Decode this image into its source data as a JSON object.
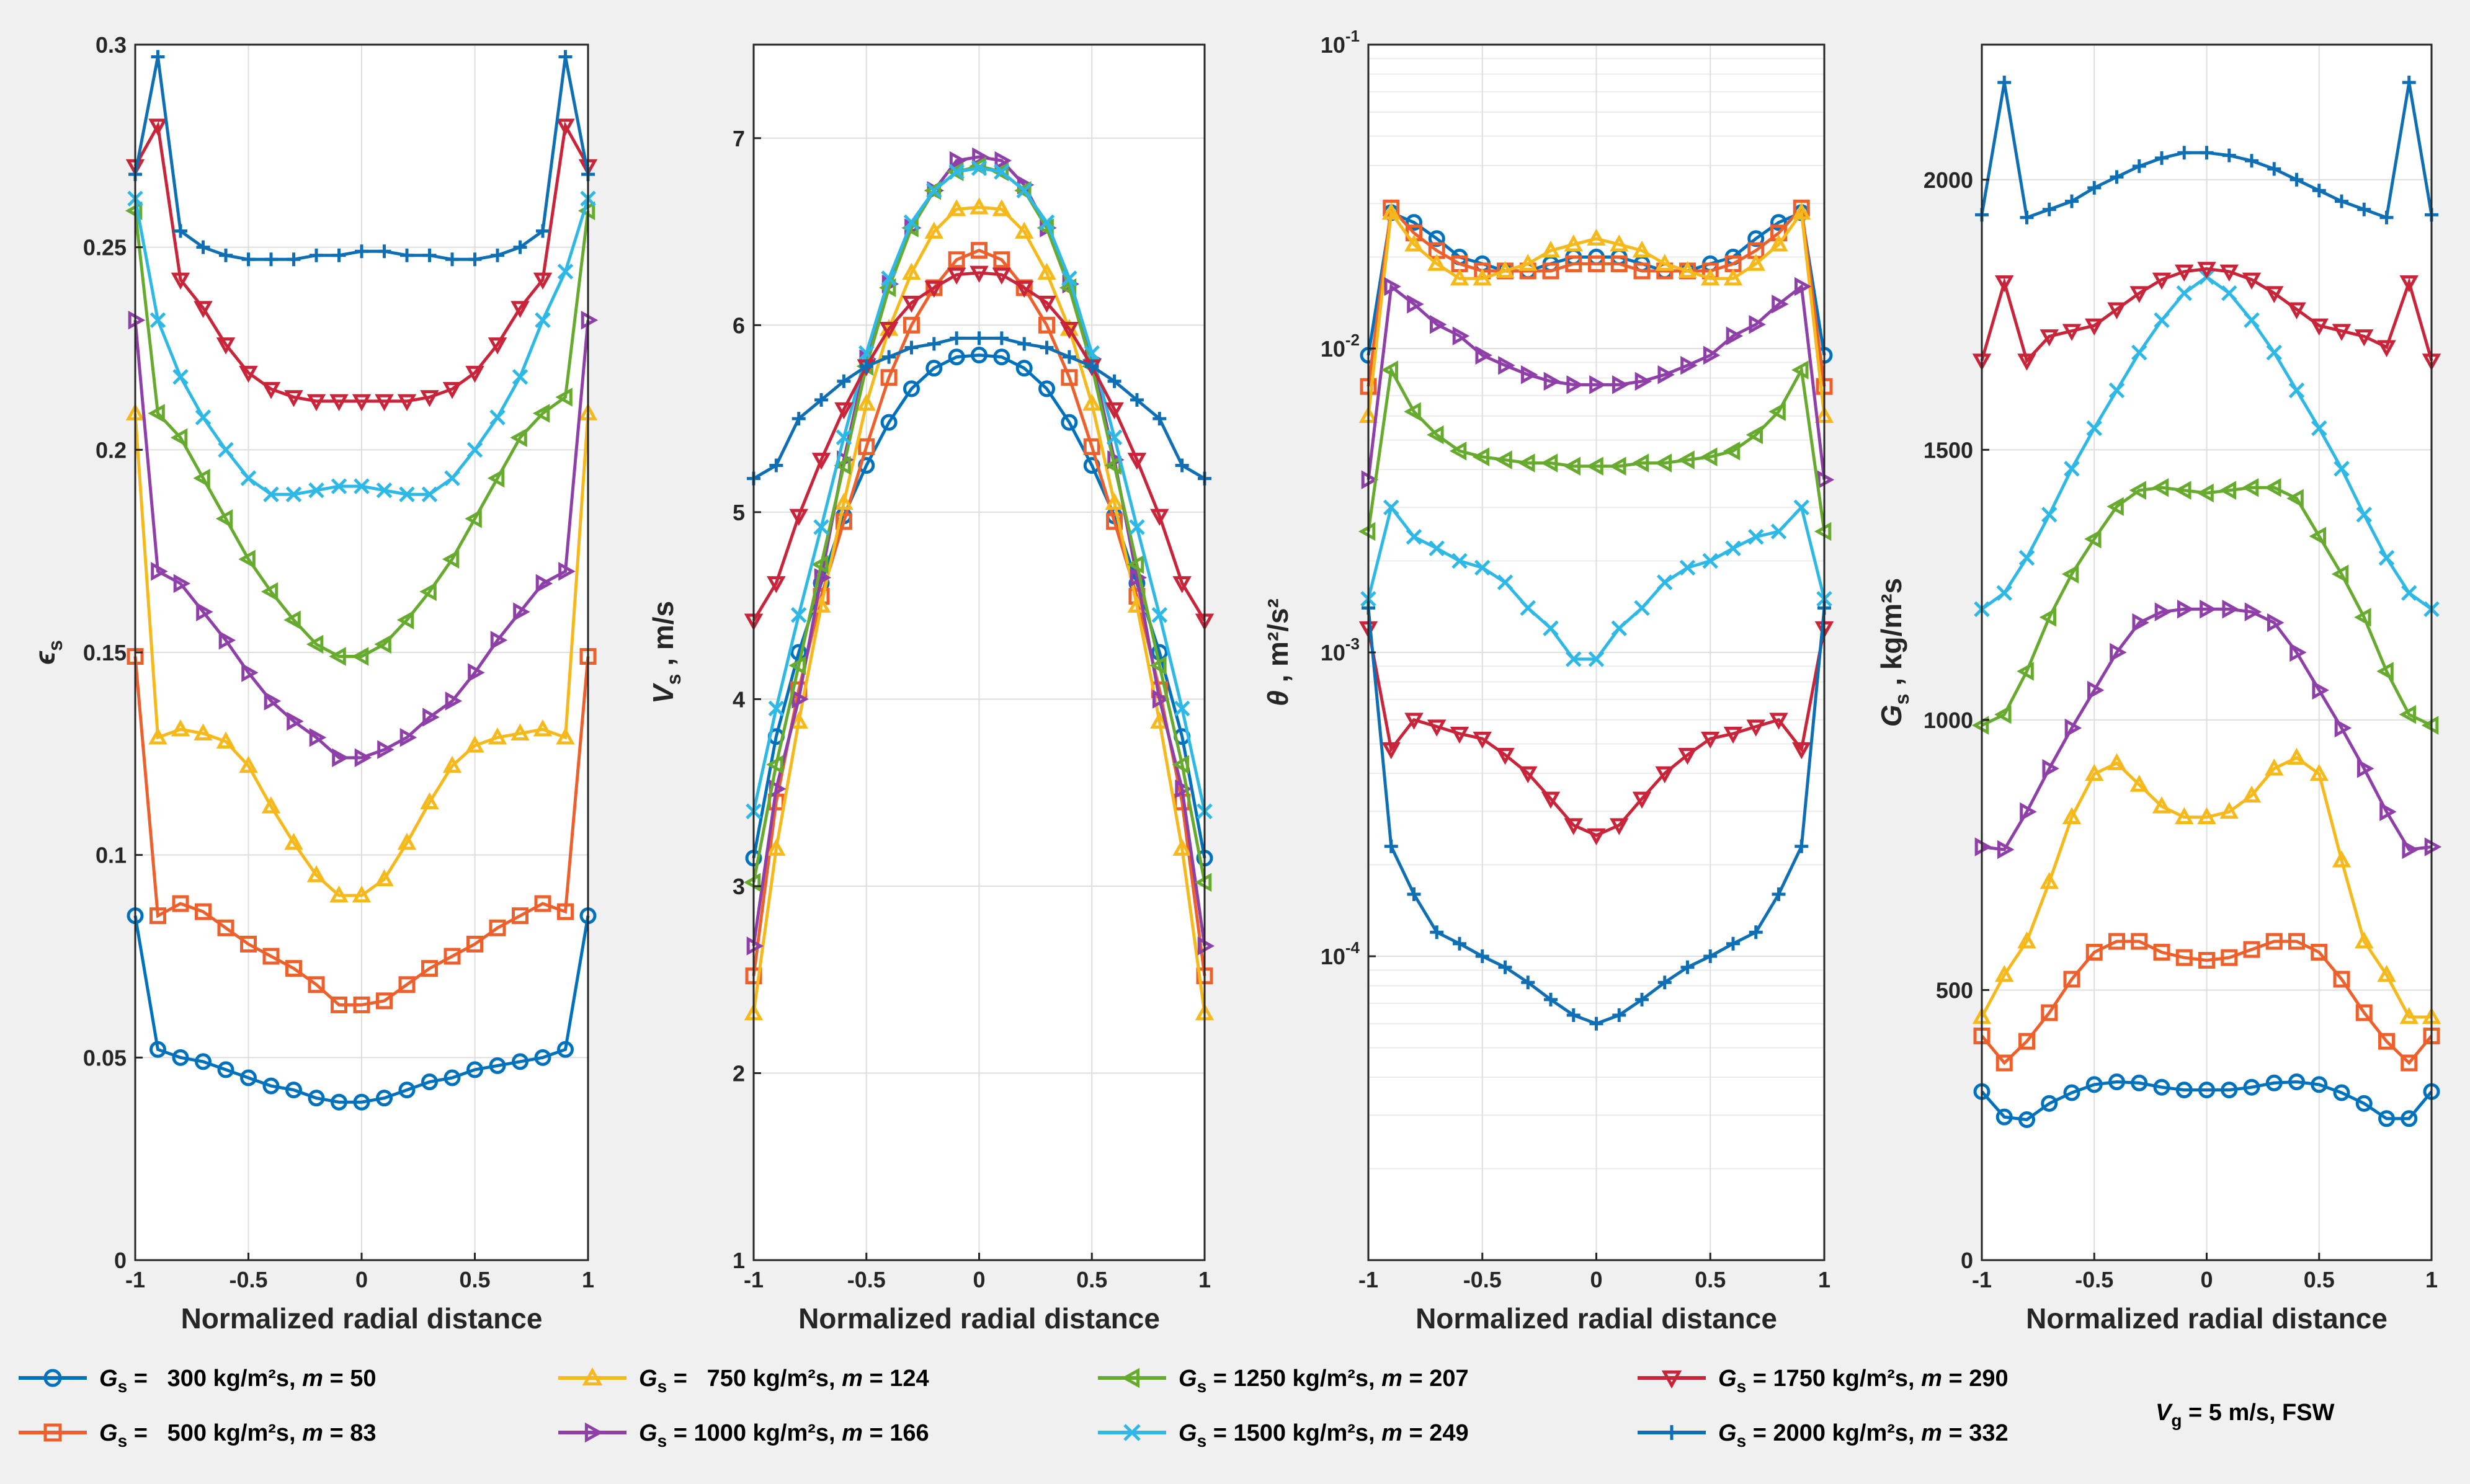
{
  "figure": {
    "note": "V_g = 5 m/s, FSW",
    "note_var": "V",
    "note_sub": "g",
    "note_rest": " = 5 m/s, FSW"
  },
  "legend": [
    {
      "text": "= 300 kg/m²s, m = 50",
      "gs": "300",
      "m": "50",
      "color": "#0072BD",
      "marker": "circle"
    },
    {
      "text": "= 500 kg/m²s, m = 83",
      "gs": "500",
      "m": "83",
      "color": "#ED5F2B",
      "marker": "square"
    },
    {
      "text": "= 750 kg/m²s, m = 124",
      "gs": "750",
      "m": "124",
      "color": "#F6B91B",
      "marker": "triangle-up"
    },
    {
      "text": "= 1000 kg/m²s, m = 166",
      "gs": "1000",
      "m": "166",
      "color": "#8E3FA8",
      "marker": "triangle-right"
    },
    {
      "text": "= 1250 kg/m²s, m = 207",
      "gs": "1250",
      "m": "207",
      "color": "#66AA2E",
      "marker": "triangle-left"
    },
    {
      "text": "= 1500 kg/m²s, m = 249",
      "gs": "1500",
      "m": "249",
      "color": "#2EB8E6",
      "marker": "x"
    },
    {
      "text": "= 1750 kg/m²s, m = 290",
      "gs": "1750",
      "m": "290",
      "color": "#C8243A",
      "marker": "triangle-down"
    },
    {
      "text": "= 2000 kg/m²s, m = 332",
      "gs": "2000",
      "m": "332",
      "color": "#0E6FB5",
      "marker": "plus"
    }
  ],
  "chart_data": [
    {
      "type": "line",
      "xlabel": "Normalized radial distance",
      "ylabel": "εs",
      "ylabel_main": "ϵ",
      "ylabel_sub": "s",
      "ylabel_rest": "",
      "xlim": [
        -1,
        1
      ],
      "ylim": [
        0,
        0.3
      ],
      "yscale": "linear",
      "grid": true,
      "xticks": [
        -1,
        -0.5,
        0,
        0.5,
        1
      ],
      "xtick_labels": [
        "-1",
        "-0.5",
        "0",
        "0.5",
        "1"
      ],
      "yticks": [
        0,
        0.05,
        0.1,
        0.15,
        0.2,
        0.25,
        0.3
      ],
      "ytick_labels": [
        "0",
        "0.05",
        "0.1",
        "0.15",
        "0.2",
        "0.25",
        "0.3"
      ],
      "x": [
        -1,
        -0.9,
        -0.8,
        -0.7,
        -0.6,
        -0.5,
        -0.4,
        -0.3,
        -0.2,
        -0.1,
        0,
        0.1,
        0.2,
        0.3,
        0.4,
        0.5,
        0.6,
        0.7,
        0.8,
        0.9,
        1
      ],
      "series": [
        {
          "values": [
            0.085,
            0.052,
            0.05,
            0.049,
            0.047,
            0.045,
            0.043,
            0.042,
            0.04,
            0.039,
            0.039,
            0.04,
            0.042,
            0.044,
            0.045,
            0.047,
            0.048,
            0.049,
            0.05,
            0.052,
            0.085
          ]
        },
        {
          "values": [
            0.149,
            0.085,
            0.088,
            0.086,
            0.082,
            0.078,
            0.075,
            0.072,
            0.068,
            0.063,
            0.063,
            0.064,
            0.068,
            0.072,
            0.075,
            0.078,
            0.082,
            0.085,
            0.088,
            0.086,
            0.149
          ]
        },
        {
          "values": [
            0.209,
            0.129,
            0.131,
            0.13,
            0.128,
            0.122,
            0.112,
            0.103,
            0.095,
            0.09,
            0.09,
            0.094,
            0.103,
            0.113,
            0.122,
            0.127,
            0.129,
            0.13,
            0.131,
            0.129,
            0.209
          ]
        },
        {
          "values": [
            0.232,
            0.17,
            0.167,
            0.16,
            0.153,
            0.145,
            0.138,
            0.133,
            0.129,
            0.124,
            0.124,
            0.126,
            0.129,
            0.134,
            0.138,
            0.145,
            0.153,
            0.16,
            0.167,
            0.17,
            0.232
          ]
        },
        {
          "values": [
            0.259,
            0.209,
            0.203,
            0.193,
            0.183,
            0.173,
            0.165,
            0.158,
            0.152,
            0.149,
            0.149,
            0.152,
            0.158,
            0.165,
            0.173,
            0.183,
            0.193,
            0.203,
            0.209,
            0.213,
            0.259
          ]
        },
        {
          "values": [
            0.262,
            0.232,
            0.218,
            0.208,
            0.2,
            0.193,
            0.189,
            0.189,
            0.19,
            0.191,
            0.191,
            0.19,
            0.189,
            0.189,
            0.193,
            0.2,
            0.208,
            0.218,
            0.232,
            0.244,
            0.262
          ]
        },
        {
          "values": [
            0.27,
            0.28,
            0.242,
            0.235,
            0.226,
            0.219,
            0.215,
            0.213,
            0.212,
            0.212,
            0.212,
            0.212,
            0.212,
            0.213,
            0.215,
            0.219,
            0.226,
            0.235,
            0.242,
            0.28,
            0.27
          ]
        },
        {
          "values": [
            0.268,
            0.297,
            0.254,
            0.25,
            0.248,
            0.247,
            0.247,
            0.247,
            0.248,
            0.248,
            0.249,
            0.249,
            0.248,
            0.248,
            0.247,
            0.247,
            0.248,
            0.25,
            0.254,
            0.297,
            0.268
          ]
        }
      ]
    },
    {
      "type": "line",
      "xlabel": "Normalized radial distance",
      "ylabel": "Vs , m/s",
      "ylabel_main": "V",
      "ylabel_sub": "s",
      "ylabel_rest": " , m/s",
      "xlim": [
        -1,
        1
      ],
      "ylim": [
        1,
        7.5
      ],
      "yscale": "linear",
      "grid": true,
      "xticks": [
        -1,
        -0.5,
        0,
        0.5,
        1
      ],
      "xtick_labels": [
        "-1",
        "-0.5",
        "0",
        "0.5",
        "1"
      ],
      "yticks": [
        1,
        2,
        3,
        4,
        5,
        6,
        7
      ],
      "ytick_labels": [
        "1",
        "2",
        "3",
        "4",
        "5",
        "6",
        "7"
      ],
      "x": [
        -1,
        -0.9,
        -0.8,
        -0.7,
        -0.6,
        -0.5,
        -0.4,
        -0.3,
        -0.2,
        -0.1,
        0,
        0.1,
        0.2,
        0.3,
        0.4,
        0.5,
        0.6,
        0.7,
        0.8,
        0.9,
        1
      ],
      "series": [
        {
          "values": [
            3.15,
            3.8,
            4.25,
            4.62,
            4.98,
            5.25,
            5.48,
            5.66,
            5.77,
            5.83,
            5.84,
            5.83,
            5.77,
            5.66,
            5.48,
            5.25,
            4.98,
            4.62,
            4.25,
            3.8,
            3.15
          ]
        },
        {
          "values": [
            2.52,
            3.45,
            4.05,
            4.55,
            4.95,
            5.35,
            5.72,
            6.0,
            6.2,
            6.35,
            6.4,
            6.35,
            6.2,
            6.0,
            5.72,
            5.35,
            4.95,
            4.55,
            4.05,
            3.45,
            2.52
          ]
        },
        {
          "values": [
            2.32,
            3.2,
            3.88,
            4.5,
            5.05,
            5.58,
            5.98,
            6.28,
            6.5,
            6.62,
            6.63,
            6.62,
            6.5,
            6.28,
            5.98,
            5.58,
            5.05,
            4.5,
            3.88,
            3.2,
            2.32
          ]
        },
        {
          "values": [
            2.68,
            3.52,
            4.0,
            4.65,
            5.28,
            5.82,
            6.22,
            6.52,
            6.72,
            6.88,
            6.9,
            6.88,
            6.75,
            6.52,
            6.22,
            5.82,
            5.28,
            4.65,
            4.0,
            3.52,
            2.68
          ]
        },
        {
          "values": [
            3.02,
            3.65,
            4.18,
            4.72,
            5.25,
            5.78,
            6.2,
            6.52,
            6.72,
            6.82,
            6.85,
            6.82,
            6.72,
            6.52,
            6.2,
            5.78,
            5.25,
            4.72,
            4.18,
            3.65,
            3.02
          ]
        },
        {
          "values": [
            3.4,
            3.95,
            4.45,
            4.92,
            5.4,
            5.85,
            6.25,
            6.55,
            6.72,
            6.82,
            6.84,
            6.82,
            6.72,
            6.55,
            6.25,
            5.85,
            5.4,
            4.92,
            4.45,
            3.95,
            3.4
          ]
        },
        {
          "values": [
            4.42,
            4.62,
            4.98,
            5.28,
            5.55,
            5.78,
            5.98,
            6.12,
            6.2,
            6.27,
            6.28,
            6.27,
            6.2,
            6.12,
            5.98,
            5.78,
            5.55,
            5.28,
            4.98,
            4.62,
            4.42
          ]
        },
        {
          "values": [
            5.18,
            5.25,
            5.5,
            5.6,
            5.7,
            5.78,
            5.83,
            5.88,
            5.9,
            5.93,
            5.93,
            5.93,
            5.9,
            5.88,
            5.83,
            5.78,
            5.7,
            5.6,
            5.5,
            5.25,
            5.18
          ]
        }
      ]
    },
    {
      "type": "line",
      "xlabel": "Normalized radial distance",
      "ylabel": "θ , m²/s²",
      "ylabel_main": "θ",
      "ylabel_sub": "",
      "ylabel_rest": " , m²/s²",
      "xlim": [
        -1,
        1
      ],
      "ylim": [
        1e-05,
        0.1
      ],
      "yscale": "log",
      "grid": true,
      "xticks": [
        -1,
        -0.5,
        0,
        0.5,
        1
      ],
      "xtick_labels": [
        "-1",
        "-0.5",
        "0",
        "0.5",
        "1"
      ],
      "yticks": [
        0.0001,
        0.001,
        0.01,
        0.1
      ],
      "ytick_labels": [
        "10-4",
        "10-3",
        "10-2",
        "10-1"
      ],
      "ytick_base": "10",
      "ytick_exp": [
        "-4",
        "-3",
        "-2",
        "-1"
      ],
      "x": [
        -1,
        -0.9,
        -0.8,
        -0.7,
        -0.6,
        -0.5,
        -0.4,
        -0.3,
        -0.2,
        -0.1,
        0,
        0.1,
        0.2,
        0.3,
        0.4,
        0.5,
        0.6,
        0.7,
        0.8,
        0.9,
        1
      ],
      "series": [
        {
          "values": [
            0.0095,
            0.028,
            0.026,
            0.023,
            0.02,
            0.019,
            0.018,
            0.018,
            0.019,
            0.02,
            0.02,
            0.02,
            0.019,
            0.018,
            0.018,
            0.019,
            0.02,
            0.023,
            0.026,
            0.028,
            0.0095
          ]
        },
        {
          "values": [
            0.0075,
            0.029,
            0.024,
            0.021,
            0.019,
            0.018,
            0.018,
            0.018,
            0.018,
            0.019,
            0.019,
            0.019,
            0.018,
            0.018,
            0.018,
            0.018,
            0.019,
            0.021,
            0.024,
            0.029,
            0.0075
          ]
        },
        {
          "values": [
            0.006,
            0.028,
            0.022,
            0.019,
            0.017,
            0.017,
            0.018,
            0.019,
            0.021,
            0.022,
            0.023,
            0.022,
            0.021,
            0.019,
            0.018,
            0.017,
            0.017,
            0.019,
            0.022,
            0.028,
            0.006
          ]
        },
        {
          "values": [
            0.0037,
            0.016,
            0.014,
            0.012,
            0.011,
            0.0095,
            0.0088,
            0.0082,
            0.0078,
            0.0076,
            0.0076,
            0.0076,
            0.0078,
            0.0082,
            0.0088,
            0.0095,
            0.011,
            0.012,
            0.014,
            0.016,
            0.0037
          ]
        },
        {
          "values": [
            0.0025,
            0.0085,
            0.0062,
            0.0052,
            0.0046,
            0.0044,
            0.0043,
            0.0042,
            0.0042,
            0.0041,
            0.0041,
            0.0041,
            0.0042,
            0.0042,
            0.0043,
            0.0044,
            0.0046,
            0.0052,
            0.0062,
            0.0085,
            0.0025
          ]
        },
        {
          "values": [
            0.0015,
            0.003,
            0.0024,
            0.0022,
            0.002,
            0.0019,
            0.0017,
            0.0014,
            0.0012,
            0.00095,
            0.00095,
            0.0012,
            0.0014,
            0.0017,
            0.0019,
            0.002,
            0.0022,
            0.0024,
            0.0025,
            0.003,
            0.0015
          ]
        },
        {
          "values": [
            0.0012,
            0.00048,
            0.0006,
            0.00057,
            0.00054,
            0.00052,
            0.00046,
            0.0004,
            0.00033,
            0.00027,
            0.00025,
            0.00027,
            0.00033,
            0.0004,
            0.00046,
            0.00052,
            0.00054,
            0.00057,
            0.0006,
            0.00048,
            0.0012
          ]
        },
        {
          "values": [
            0.0014,
            0.00023,
            0.00016,
            0.00012,
            0.00011,
            0.0001,
            9.2e-05,
            8.2e-05,
            7.2e-05,
            6.4e-05,
            6e-05,
            6.4e-05,
            7.2e-05,
            8.2e-05,
            9.2e-05,
            0.0001,
            0.00011,
            0.00012,
            0.00016,
            0.00023,
            0.0014
          ]
        }
      ]
    },
    {
      "type": "line",
      "xlabel": "Normalized radial distance",
      "ylabel": "Gs , kg/m²s",
      "ylabel_main": "G",
      "ylabel_sub": "s",
      "ylabel_rest": " , kg/m²s",
      "xlim": [
        -1,
        1
      ],
      "ylim": [
        0,
        2250
      ],
      "yscale": "linear",
      "grid": true,
      "xticks": [
        -1,
        -0.5,
        0,
        0.5,
        1
      ],
      "xtick_labels": [
        "-1",
        "-0.5",
        "0",
        "0.5",
        "1"
      ],
      "yticks": [
        0,
        500,
        1000,
        1500,
        2000
      ],
      "ytick_labels": [
        "0",
        "500",
        "1000",
        "1500",
        "2000"
      ],
      "x": [
        -1,
        -0.9,
        -0.8,
        -0.7,
        -0.6,
        -0.5,
        -0.4,
        -0.3,
        -0.2,
        -0.1,
        0,
        0.1,
        0.2,
        0.3,
        0.4,
        0.5,
        0.6,
        0.7,
        0.8,
        0.9,
        1
      ],
      "series": [
        {
          "values": [
            312,
            265,
            260,
            290,
            310,
            325,
            330,
            328,
            320,
            315,
            315,
            315,
            320,
            328,
            330,
            325,
            310,
            290,
            262,
            262,
            312
          ]
        },
        {
          "values": [
            415,
            365,
            405,
            458,
            520,
            570,
            590,
            590,
            570,
            560,
            555,
            560,
            575,
            590,
            590,
            570,
            520,
            458,
            405,
            365,
            415
          ]
        },
        {
          "values": [
            450,
            528,
            590,
            700,
            820,
            900,
            920,
            880,
            840,
            820,
            820,
            830,
            860,
            910,
            930,
            900,
            740,
            590,
            528,
            450,
            450
          ]
        },
        {
          "values": [
            765,
            760,
            830,
            910,
            985,
            1055,
            1125,
            1180,
            1200,
            1205,
            1205,
            1205,
            1200,
            1180,
            1125,
            1055,
            985,
            910,
            830,
            760,
            765
          ]
        },
        {
          "values": [
            990,
            1010,
            1090,
            1190,
            1270,
            1335,
            1395,
            1425,
            1430,
            1425,
            1420,
            1425,
            1430,
            1430,
            1410,
            1340,
            1270,
            1190,
            1090,
            1010,
            990
          ]
        },
        {
          "values": [
            1205,
            1235,
            1300,
            1380,
            1465,
            1540,
            1610,
            1680,
            1740,
            1790,
            1820,
            1790,
            1740,
            1680,
            1610,
            1540,
            1465,
            1380,
            1300,
            1235,
            1205
          ]
        },
        {
          "values": [
            1665,
            1810,
            1665,
            1710,
            1720,
            1730,
            1760,
            1790,
            1815,
            1830,
            1835,
            1830,
            1815,
            1790,
            1760,
            1730,
            1720,
            1710,
            1690,
            1810,
            1665
          ]
        },
        {
          "values": [
            1935,
            2180,
            1930,
            1945,
            1960,
            1985,
            2005,
            2025,
            2040,
            2050,
            2050,
            2045,
            2035,
            2020,
            2000,
            1980,
            1960,
            1945,
            1930,
            2180,
            1935
          ]
        }
      ]
    }
  ]
}
